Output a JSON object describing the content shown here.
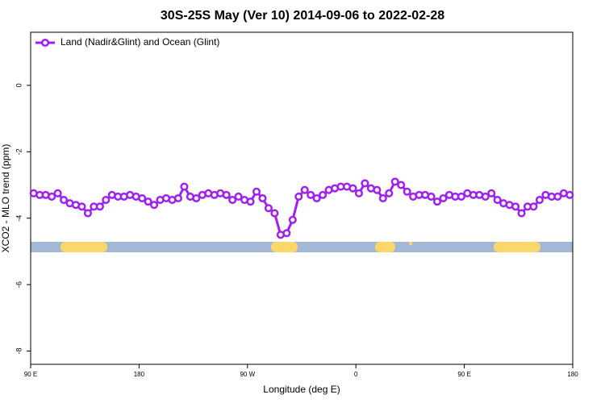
{
  "chart_data": {
    "type": "line",
    "title": "30S-25S May (Ver 10)   2014-09-06 to 2022-02-28",
    "x_label": "Longitude (deg E)",
    "y_label": "XCO2 - MLO trend (ppm)",
    "legend_position": "top-left",
    "x": [
      92.5,
      97.5,
      102.5,
      107.5,
      112.5,
      117.5,
      122.5,
      127.5,
      132.5,
      137.5,
      142.5,
      147.5,
      152.5,
      157.5,
      162.5,
      167.5,
      172.5,
      177.5,
      182.5,
      187.5,
      192.5,
      197.5,
      202.5,
      207.5,
      212.5,
      217.5,
      222.5,
      227.5,
      232.5,
      237.5,
      242.5,
      247.5,
      252.5,
      257.5,
      262.5,
      267.5,
      272.5,
      277.5,
      282.5,
      287.5,
      292.5,
      297.5,
      302.5,
      307.5,
      312.5,
      317.5,
      322.5,
      327.5,
      332.5,
      337.5,
      342.5,
      347.5,
      352.5,
      357.5,
      362.5,
      367.5,
      372.5,
      377.5,
      382.5,
      387.5,
      392.5,
      397.5,
      402.5,
      407.5,
      412.5,
      417.5,
      422.5,
      427.5,
      432.5,
      437.5,
      442.5,
      447.5,
      452.5,
      457.5,
      462.5,
      467.5,
      472.5,
      477.5,
      482.5,
      487.5,
      492.5,
      497.5,
      502.5,
      507.5,
      512.5,
      517.5,
      522.5,
      527.5,
      532.5,
      537.5
    ],
    "series": [
      {
        "name": "Land (Nadir&Glint) and Ocean (Glint)",
        "color": "#a020f0",
        "values": [
          -3.25,
          -3.3,
          -3.3,
          -3.35,
          -3.25,
          -3.45,
          -3.55,
          -3.6,
          -3.65,
          -3.85,
          -3.65,
          -3.65,
          -3.45,
          -3.3,
          -3.35,
          -3.35,
          -3.3,
          -3.35,
          -3.4,
          -3.5,
          -3.6,
          -3.45,
          -3.4,
          -3.45,
          -3.4,
          -3.05,
          -3.35,
          -3.4,
          -3.3,
          -3.25,
          -3.3,
          -3.25,
          -3.3,
          -3.45,
          -3.35,
          -3.45,
          -3.5,
          -3.2,
          -3.4,
          -3.7,
          -3.85,
          -4.5,
          -4.45,
          -4.05,
          -3.35,
          -3.15,
          -3.3,
          -3.4,
          -3.3,
          -3.15,
          -3.1,
          -3.05,
          -3.05,
          -3.1,
          -3.25,
          -2.95,
          -3.1,
          -3.15,
          -3.4,
          -3.25,
          -2.9,
          -3,
          -3.2,
          -3.35,
          -3.3,
          -3.3,
          -3.35,
          -3.5,
          -3.4,
          -3.3,
          -3.35,
          -3.35,
          -3.25,
          -3.3,
          -3.3,
          -3.35,
          -3.25,
          -3.45,
          -3.55,
          -3.6,
          -3.65,
          -3.85,
          -3.65,
          -3.65,
          -3.45,
          -3.3,
          -3.35,
          -3.35,
          -3.25,
          -3.3
        ]
      }
    ],
    "xlim": [
      90,
      540
    ],
    "xticks": [
      {
        "value": 90,
        "label": "90 E"
      },
      180,
      {
        "value": 270,
        "label": "90 W"
      },
      {
        "value": 360,
        "label": "0"
      },
      {
        "value": 450,
        "label": "90 E"
      },
      {
        "value": 540,
        "label": "180"
      }
    ],
    "ylim": [
      -8.4,
      1.6
    ],
    "yticks": [
      0,
      -2,
      -4,
      -6,
      -8
    ]
  }
}
